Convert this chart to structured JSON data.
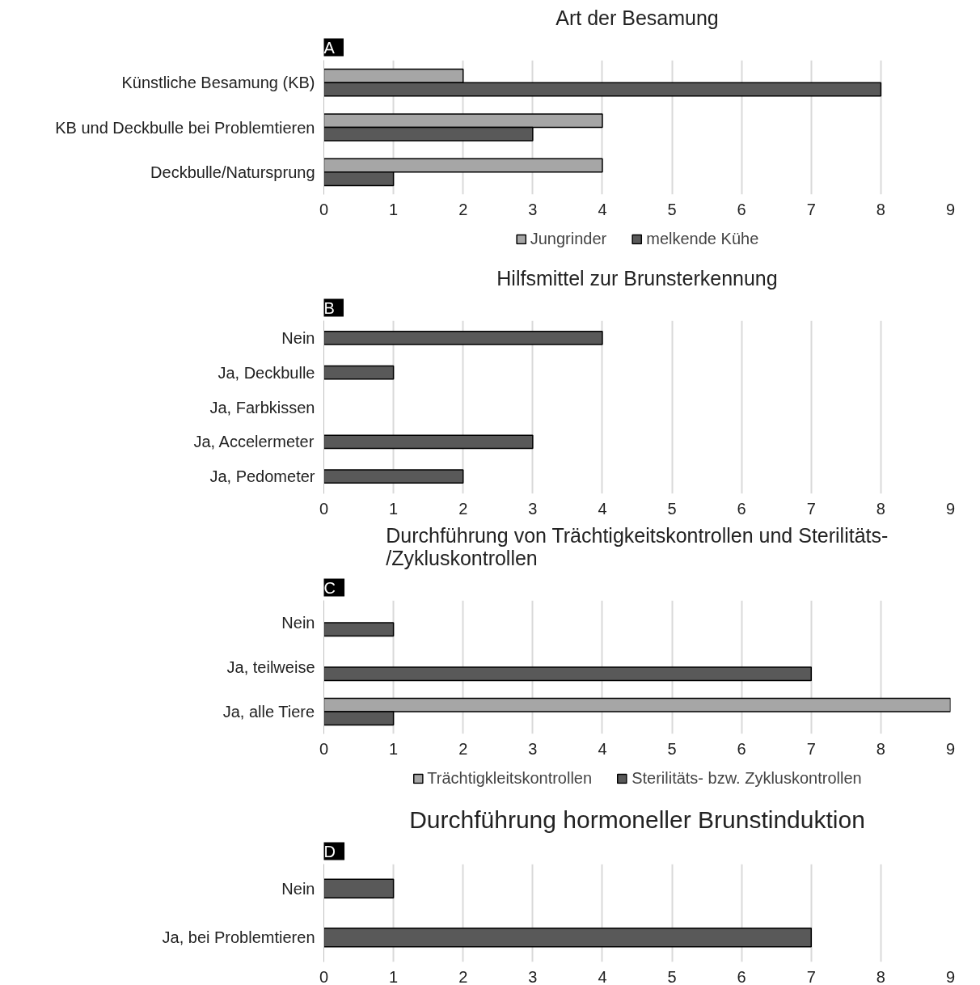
{
  "chart_data": [
    {
      "type": "bar",
      "orientation": "horizontal",
      "title": "Art der Besamung",
      "annotations": [
        "A"
      ],
      "categories": [
        "Künstliche Besamung (KB)",
        "KB und Deckbulle bei Problemtieren",
        "Deckbulle/Natursprung"
      ],
      "series": [
        {
          "name": "Jungrinder",
          "color": "#a6a6a6",
          "values": [
            2,
            4,
            4
          ]
        },
        {
          "name": "melkende Kühe",
          "color": "#595959",
          "values": [
            8,
            3,
            1
          ]
        }
      ],
      "xlim": [
        0,
        9
      ],
      "xticks": [
        0,
        1,
        2,
        3,
        4,
        5,
        6,
        7,
        8,
        9
      ],
      "grid": "x",
      "legend": "bottom"
    },
    {
      "type": "bar",
      "orientation": "horizontal",
      "title": "Hilfsmittel zur Brunsterkennung",
      "annotations": [
        "B"
      ],
      "categories": [
        "Nein",
        "Ja, Deckbulle",
        "Ja, Farbkissen",
        "Ja, Accelermeter",
        "Ja, Pedometer"
      ],
      "series": [
        {
          "color": "#595959",
          "values": [
            4,
            1,
            null,
            3,
            2
          ]
        }
      ],
      "xlim": [
        0,
        9
      ],
      "xticks": [
        0,
        1,
        2,
        3,
        4,
        5,
        6,
        7,
        8,
        9
      ],
      "grid": "x"
    },
    {
      "type": "bar",
      "orientation": "horizontal",
      "title": "Durchführung von Trächtigkeitskontrollen und Sterilitäts-\n/Zykluskontrollen",
      "annotations": [
        "C"
      ],
      "categories": [
        "Nein",
        "Ja, teilweise",
        "Ja, alle Tiere"
      ],
      "series": [
        {
          "name": "Trächtigkleitskontrollen",
          "color": "#a6a6a6",
          "values": [
            null,
            null,
            9
          ]
        },
        {
          "name": "Sterilitäts- bzw. Zykluskontrollen",
          "color": "#595959",
          "values": [
            1,
            7,
            1
          ]
        }
      ],
      "xlim": [
        0,
        9
      ],
      "xticks": [
        0,
        1,
        2,
        3,
        4,
        5,
        6,
        7,
        8,
        9
      ],
      "grid": "x",
      "legend": "bottom"
    },
    {
      "type": "bar",
      "orientation": "horizontal",
      "title": "Durchführung hormoneller Brunstinduktion",
      "annotations": [
        "D"
      ],
      "categories": [
        "Nein",
        "Ja, bei Problemtieren"
      ],
      "series": [
        {
          "color": "#595959",
          "values": [
            1,
            7
          ]
        }
      ],
      "xlim": [
        0,
        9
      ],
      "xticks": [
        0,
        1,
        2,
        3,
        4,
        5,
        6,
        7,
        8,
        9
      ],
      "grid": "x"
    }
  ]
}
